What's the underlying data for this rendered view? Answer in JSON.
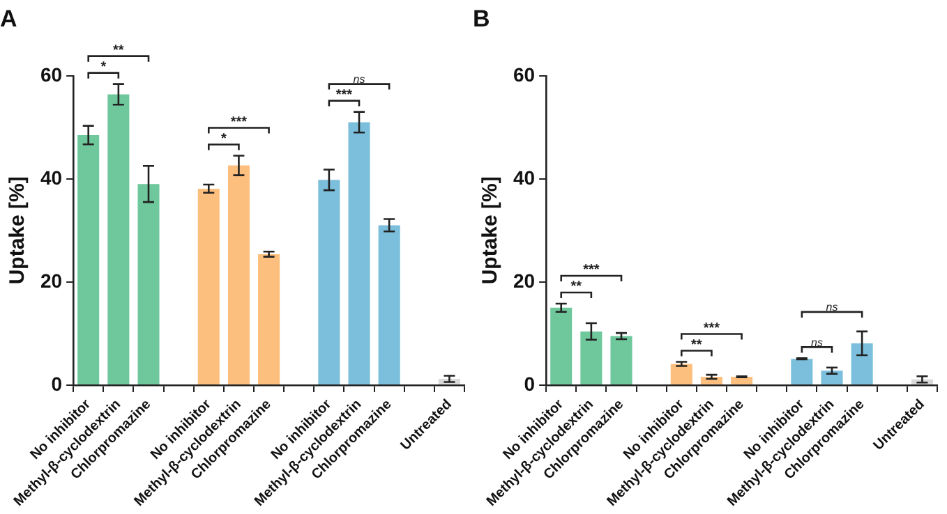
{
  "chart_data": [
    {
      "type": "bar",
      "title": "A",
      "ylabel": "Uptake [%]",
      "categories": [
        "No inhibitor",
        "Methyl-β-cyclodextrin",
        "Chlorpromazine",
        null,
        "No inhibitor",
        "Methyl-β-cyclodextrin",
        "Chlorpromazine",
        null,
        "No inhibitor",
        "Methyl-β-cyclodextrin",
        "Chlorpromazine",
        null,
        "Untreated"
      ],
      "values": [
        48.5,
        56.4,
        39,
        null,
        38.1,
        42.6,
        25.4,
        null,
        39.8,
        51,
        31,
        null,
        1.2
      ],
      "errors": [
        1.8,
        2,
        3.5,
        null,
        0.8,
        1.9,
        0.5,
        null,
        2,
        2,
        1.2,
        null,
        0.6
      ],
      "colors": [
        "#6fc79c",
        "#6fc79c",
        "#6fc79c",
        "#ffffff",
        "#fdbf7e",
        "#fdbf7e",
        "#fdbf7e",
        "#ffffff",
        "#7bbfdc",
        "#7bbfdc",
        "#7bbfdc",
        "#ffffff",
        "#d9d9d9"
      ],
      "ylim": [
        0,
        60
      ],
      "yticks": [
        0,
        20,
        40,
        60
      ],
      "annotations": [
        "*",
        "**",
        "*",
        "***",
        "***",
        "ns"
      ]
    },
    {
      "type": "bar",
      "title": "B",
      "ylabel": "Uptake [%]",
      "categories": [
        "No inhibitor",
        "Methyl-β-cyclodextrin",
        "Chlorpromazine",
        null,
        "No inhibitor",
        "Methyl-β-cyclodextrin",
        "Chlorpromazine",
        null,
        "No inhibitor",
        "Methyl-β-cyclodextrin",
        "Chlorpromazine",
        null,
        "Untreated"
      ],
      "values": [
        15,
        10.4,
        9.5,
        null,
        4.1,
        1.6,
        1.6,
        null,
        5.1,
        2.8,
        8.1,
        null,
        1.1
      ],
      "errors": [
        0.8,
        1.6,
        0.6,
        null,
        0.4,
        0.4,
        0.1,
        null,
        0.1,
        0.6,
        2.3,
        null,
        0.6
      ],
      "colors": [
        "#6fc79c",
        "#6fc79c",
        "#6fc79c",
        "#ffffff",
        "#fdbf7e",
        "#fdbf7e",
        "#fdbf7e",
        "#ffffff",
        "#7bbfdc",
        "#7bbfdc",
        "#7bbfdc",
        "#ffffff",
        "#d9d9d9"
      ],
      "ylim": [
        0,
        60
      ],
      "yticks": [
        0,
        20,
        40,
        60
      ],
      "annotations": [
        "**",
        "***",
        "**",
        "***",
        "ns",
        "ns"
      ]
    }
  ]
}
